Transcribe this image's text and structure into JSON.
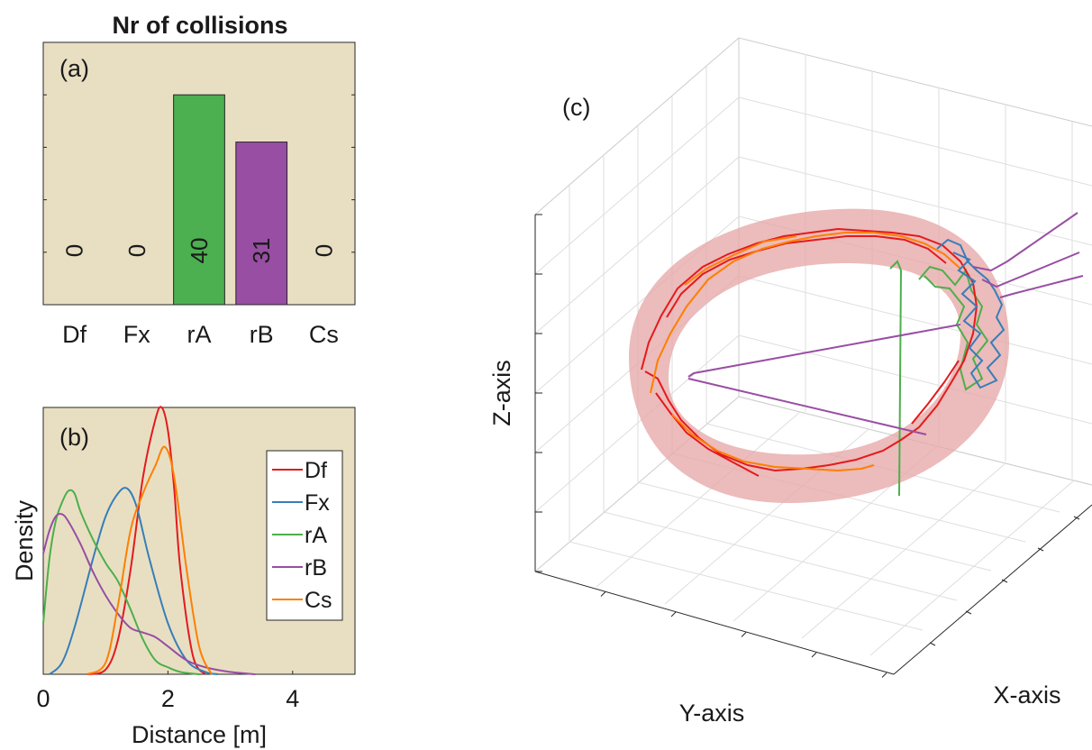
{
  "chart_data": [
    {
      "panel": "(a)",
      "type": "bar",
      "title": "Nr of collisions",
      "categories": [
        "Df",
        "Fx",
        "rA",
        "rB",
        "Cs"
      ],
      "values": [
        0,
        0,
        40,
        31,
        0
      ],
      "value_labels": [
        "0",
        "0",
        "40",
        "31",
        "0"
      ],
      "colors": [
        "#4caf50",
        "#4caf50",
        "#4caf50",
        "#984ea3",
        "#4caf50"
      ],
      "ylim": [
        0,
        50
      ],
      "background": "#e8dfc3",
      "grid": false
    },
    {
      "panel": "(b)",
      "type": "line",
      "xlabel": "Distance [m]",
      "ylabel": "Density",
      "xlim": [
        0,
        5
      ],
      "ylim": [
        0,
        1.15
      ],
      "xticks": [
        0,
        2,
        4
      ],
      "background": "#e8dfc3",
      "legend_position": "right",
      "series": [
        {
          "name": "Df",
          "color": "#e41a1c",
          "x": [
            0.7,
            1.0,
            1.2,
            1.4,
            1.6,
            1.8,
            1.9,
            2.0,
            2.1,
            2.2,
            2.4,
            2.6
          ],
          "y": [
            0,
            0.02,
            0.15,
            0.45,
            0.85,
            1.1,
            1.15,
            1.05,
            0.8,
            0.45,
            0.08,
            0
          ]
        },
        {
          "name": "Fx",
          "color": "#377eb8",
          "x": [
            0.1,
            0.3,
            0.5,
            0.8,
            1.0,
            1.2,
            1.35,
            1.5,
            1.7,
            2.0,
            2.3,
            2.6,
            2.8
          ],
          "y": [
            0,
            0.05,
            0.2,
            0.5,
            0.68,
            0.78,
            0.8,
            0.72,
            0.5,
            0.22,
            0.06,
            0.01,
            0
          ]
        },
        {
          "name": "rA",
          "color": "#4daf4a",
          "x": [
            0,
            0.1,
            0.2,
            0.3,
            0.4,
            0.5,
            0.6,
            0.8,
            1.0,
            1.2,
            1.4,
            1.6,
            1.8,
            2.0,
            2.2,
            2.5
          ],
          "y": [
            0.22,
            0.5,
            0.66,
            0.74,
            0.79,
            0.78,
            0.7,
            0.58,
            0.48,
            0.4,
            0.28,
            0.15,
            0.06,
            0.03,
            0.01,
            0
          ]
        },
        {
          "name": "rB",
          "color": "#984ea3",
          "x": [
            0,
            0.1,
            0.2,
            0.3,
            0.4,
            0.6,
            0.8,
            1.0,
            1.2,
            1.4,
            1.6,
            1.8,
            2.0,
            2.3,
            2.6,
            3.0,
            3.4
          ],
          "y": [
            0.52,
            0.62,
            0.68,
            0.69,
            0.66,
            0.56,
            0.44,
            0.34,
            0.26,
            0.2,
            0.18,
            0.16,
            0.12,
            0.06,
            0.03,
            0.01,
            0
          ]
        },
        {
          "name": "Cs",
          "color": "#ff7f00",
          "x": [
            0.7,
            1.0,
            1.2,
            1.4,
            1.6,
            1.8,
            1.95,
            2.1,
            2.3,
            2.5,
            2.7
          ],
          "y": [
            0,
            0.05,
            0.3,
            0.62,
            0.78,
            0.9,
            0.98,
            0.85,
            0.45,
            0.12,
            0
          ]
        }
      ]
    },
    {
      "panel": "(c)",
      "type": "line",
      "mode": "3d-trajectories",
      "xlabel": "X-axis",
      "ylabel": "Y-axis",
      "zlabel": "Z-axis",
      "surface": "torus",
      "surface_color": "#e8a9a9",
      "grid": true,
      "series_colors": {
        "Df": "#e41a1c",
        "Fx": "#377eb8",
        "rA": "#4daf4a",
        "rB": "#984ea3",
        "Cs": "#ff7f00"
      }
    }
  ]
}
